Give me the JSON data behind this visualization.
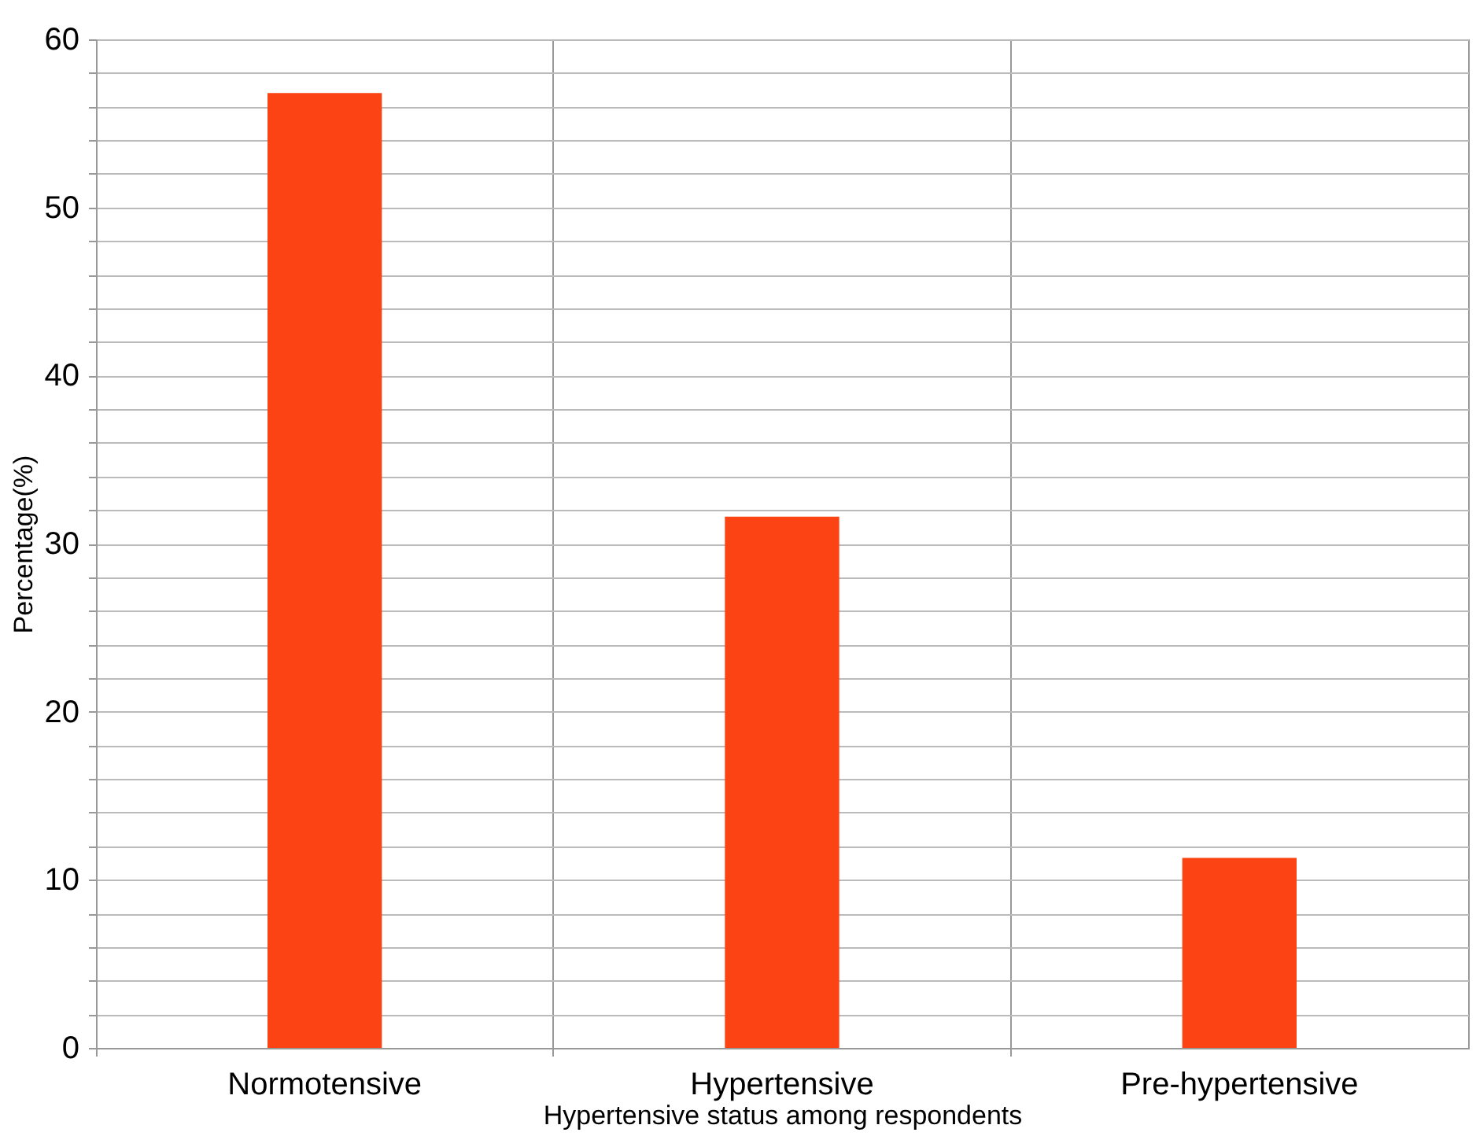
{
  "chart_data": {
    "type": "bar",
    "xlabel": "Hypertensive status among respondents",
    "ylabel": "Percentage(%)",
    "categories": [
      "Normotensive",
      "Hypertensive",
      "Pre-hypertensive"
    ],
    "values": [
      56.8,
      31.6,
      11.3
    ],
    "color": "#fc4313",
    "ylim": [
      0,
      60
    ],
    "yticks": [
      0,
      {
        "value": 2,
        "label": null
      },
      {
        "value": 4,
        "label": null
      },
      {
        "value": 6,
        "label": null
      },
      {
        "value": 8,
        "label": null
      },
      10,
      {
        "value": 12,
        "label": null
      },
      {
        "value": 14,
        "label": null
      },
      {
        "value": 16,
        "label": null
      },
      {
        "value": 18,
        "label": null
      },
      20,
      {
        "value": 22,
        "label": null
      },
      {
        "value": 24,
        "label": null
      },
      {
        "value": 26,
        "label": null
      },
      {
        "value": 28,
        "label": null
      },
      30,
      {
        "value": 32,
        "label": null
      },
      {
        "value": 34,
        "label": null
      },
      {
        "value": 36,
        "label": null
      },
      {
        "value": 38,
        "label": null
      },
      40,
      {
        "value": 42,
        "label": null
      },
      {
        "value": 44,
        "label": null
      },
      {
        "value": 46,
        "label": null
      },
      {
        "value": 48,
        "label": null
      },
      50,
      {
        "value": 52,
        "label": null
      },
      {
        "value": 54,
        "label": null
      },
      {
        "value": 56,
        "label": null
      },
      {
        "value": 58,
        "label": null
      },
      60
    ],
    "grid": true
  }
}
